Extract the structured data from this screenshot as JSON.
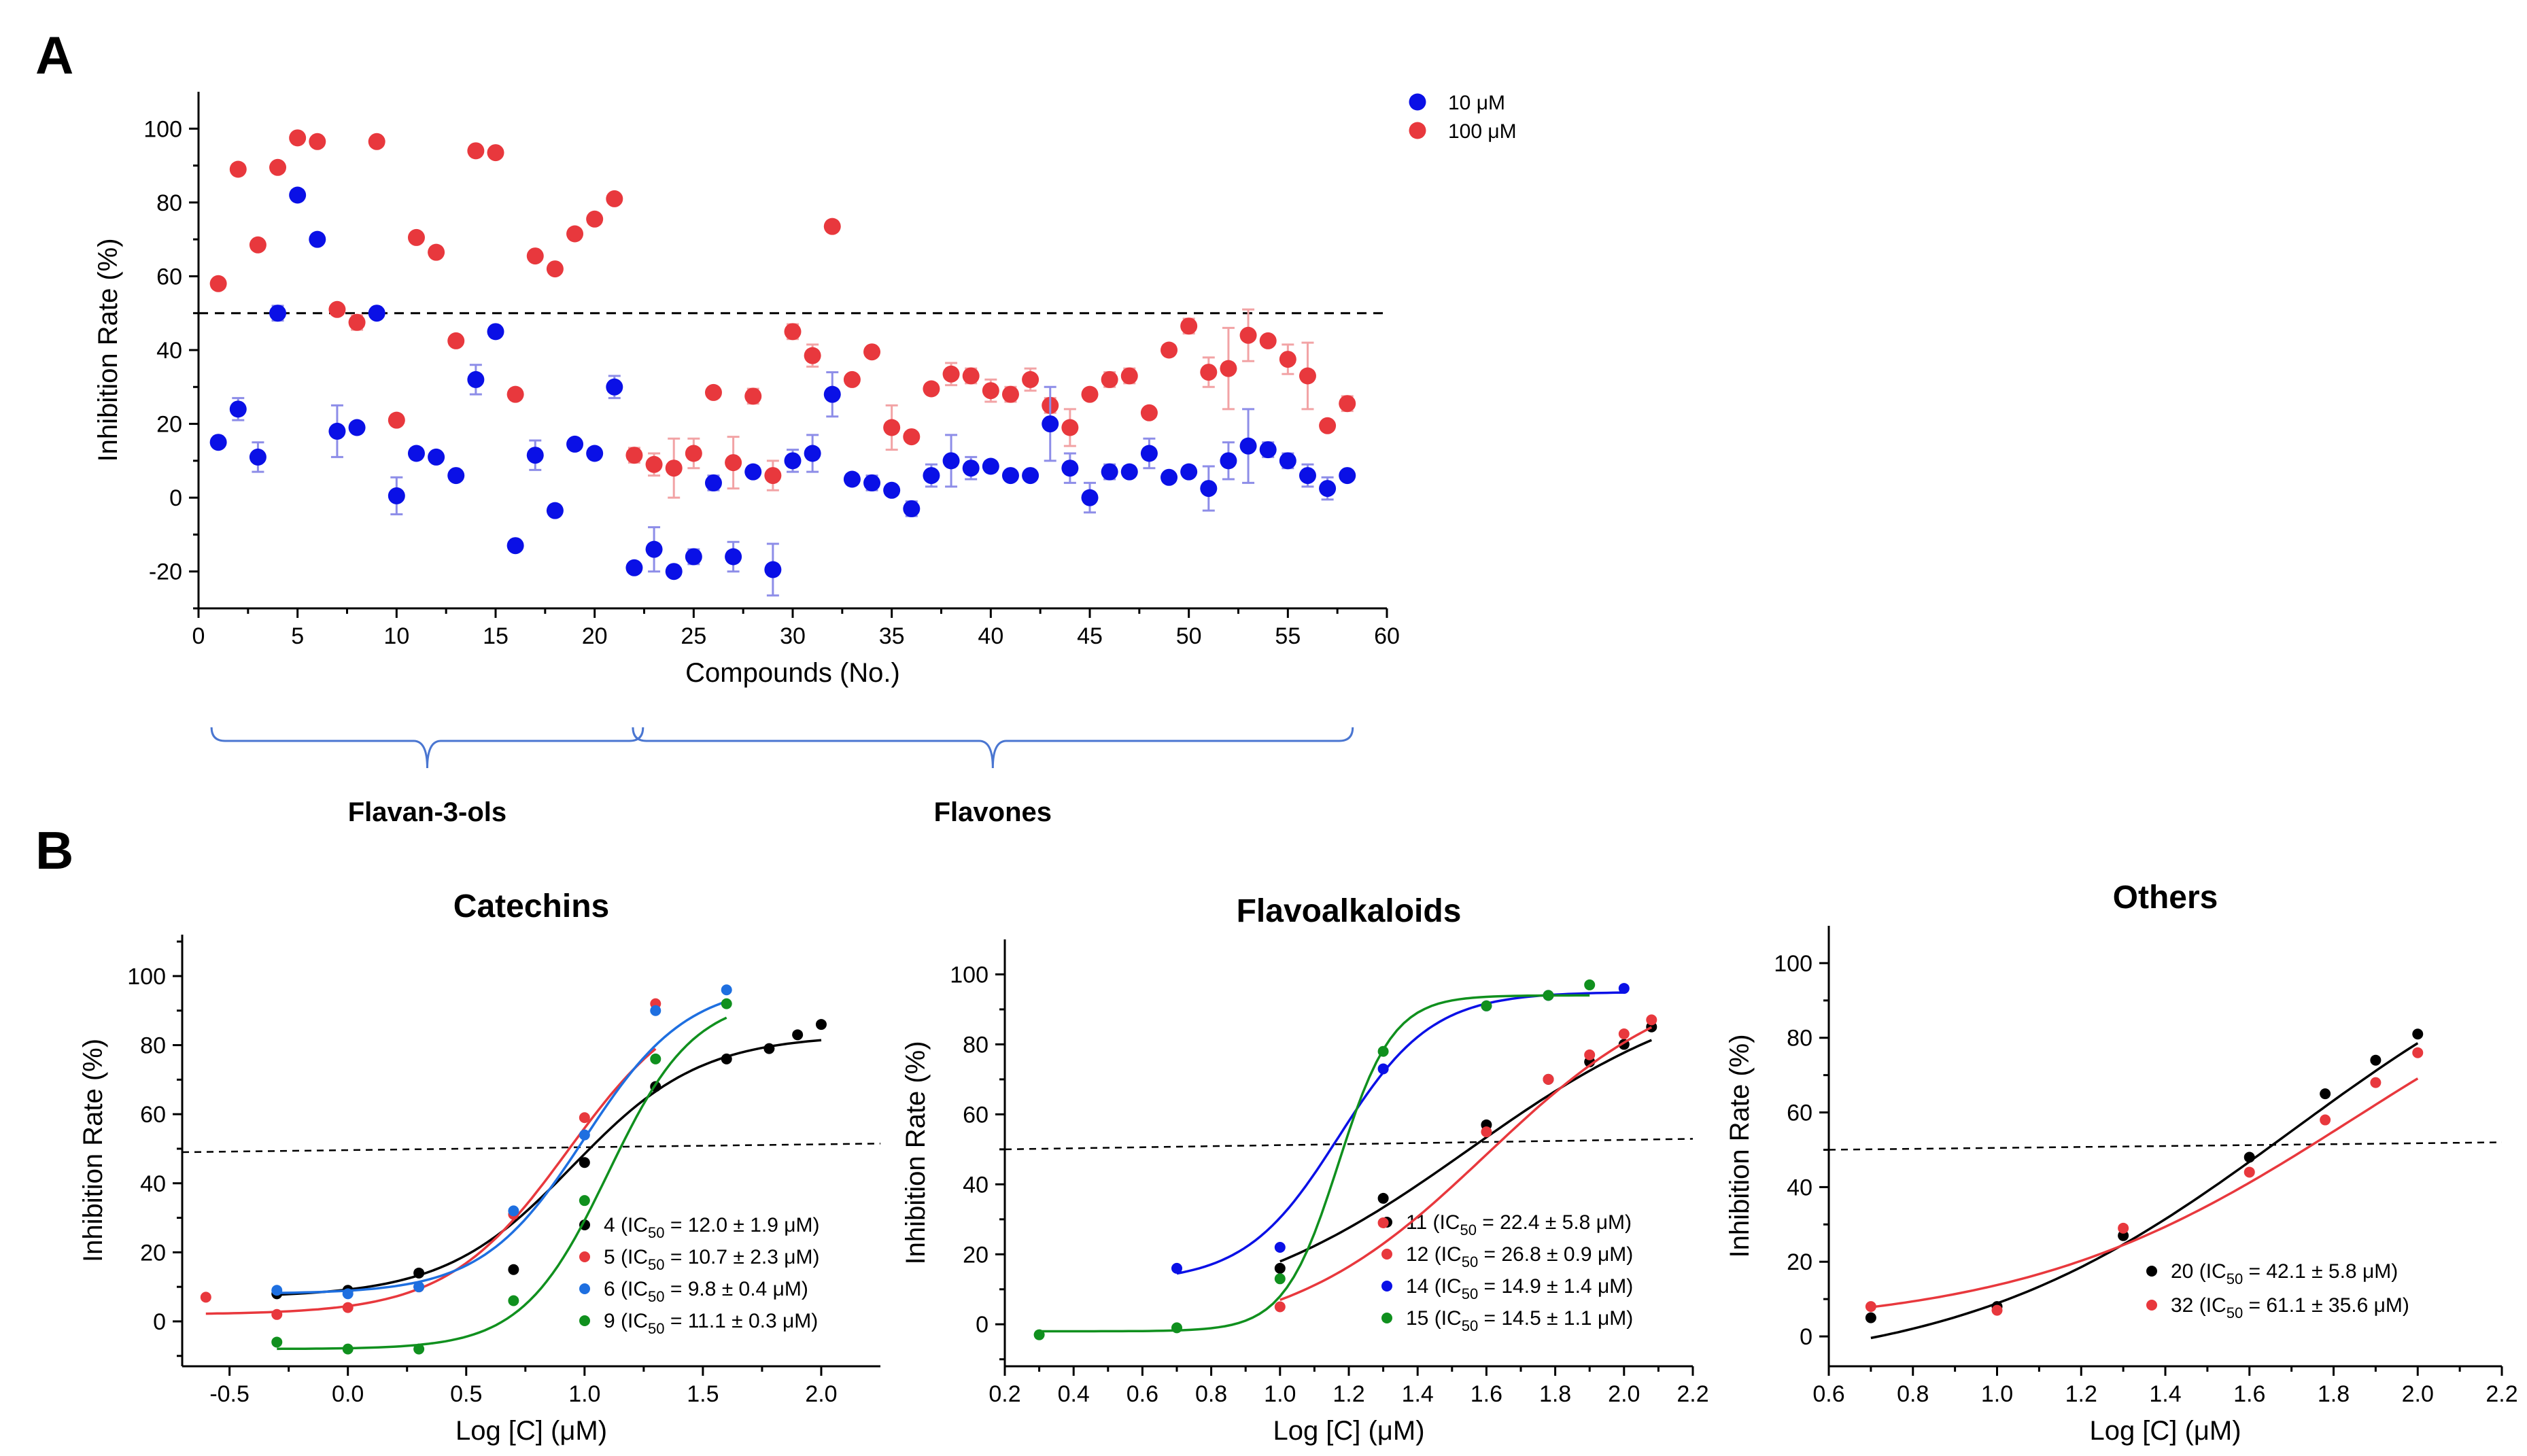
{
  "figure": {
    "panel_a_label": "A",
    "panel_b_label": "B",
    "groups": [
      {
        "label": "Flavan-3-ols",
        "from": 1,
        "to": 21
      },
      {
        "label": "Flavones",
        "from": 22,
        "to": 58
      }
    ]
  },
  "colors": {
    "blue": "#0a10e6",
    "red": "#e8383d",
    "black": "#000000",
    "lightblue": "#1e6fe0",
    "green": "#10901e",
    "errBlue": "#8d8de8",
    "errRed": "#f2a3a5"
  },
  "chart_data": [
    {
      "type": "scatter",
      "panel": "A",
      "title": "",
      "xlabel": "Compounds (No.)",
      "ylabel": "Inhibition Rate (%)",
      "xlim": [
        0,
        60
      ],
      "ylim": [
        -30,
        110
      ],
      "xticks": [
        0,
        5,
        10,
        15,
        20,
        25,
        30,
        35,
        40,
        45,
        50,
        55,
        60
      ],
      "yticks": [
        -20,
        0,
        20,
        40,
        60,
        80,
        100
      ],
      "reference_line_y": 50,
      "legend_position": "top-right",
      "series": [
        {
          "name": "10 μM",
          "color_key": "blue",
          "x": [
            1,
            2,
            3,
            4,
            5,
            6,
            7,
            8,
            9,
            10,
            11,
            12,
            13,
            14,
            15,
            16,
            17,
            18,
            19,
            20,
            21,
            22,
            23,
            24,
            25,
            26,
            27,
            28,
            29,
            30,
            31,
            32,
            33,
            34,
            35,
            36,
            37,
            38,
            39,
            40,
            41,
            42,
            43,
            44,
            45,
            46,
            47,
            48,
            49,
            50,
            51,
            52,
            53,
            54,
            55,
            56,
            57,
            58
          ],
          "y": [
            15,
            24,
            11,
            50,
            82,
            70,
            18,
            19,
            50,
            0.5,
            12,
            11,
            6,
            32,
            45,
            -13,
            11.5,
            -3.5,
            14.5,
            12,
            30,
            -19,
            -14,
            -20,
            -16,
            4,
            -16,
            7,
            -19.5,
            10,
            12,
            28,
            5,
            4,
            2,
            -3,
            6,
            10,
            8,
            8.5,
            6,
            6,
            20,
            8,
            0,
            7,
            7,
            12,
            5.5,
            7,
            2.5,
            10,
            14,
            13,
            10,
            6,
            2.5,
            6
          ],
          "err": [
            0,
            3,
            4,
            2,
            0,
            0,
            7,
            0,
            0,
            5,
            0,
            0,
            0,
            4,
            0,
            0,
            4,
            0,
            0,
            0,
            3,
            0,
            6,
            0,
            2,
            2,
            4,
            0,
            7,
            3,
            5,
            6,
            0,
            2,
            0,
            2,
            3,
            7,
            3,
            0,
            0,
            0,
            10,
            4,
            4,
            2,
            0,
            4,
            0,
            0,
            6,
            5,
            10,
            2,
            2,
            3,
            3,
            0
          ]
        },
        {
          "name": "100 μM",
          "color_key": "red",
          "x": [
            1,
            2,
            3,
            4,
            5,
            6,
            7,
            8,
            9,
            10,
            11,
            12,
            13,
            14,
            15,
            16,
            17,
            18,
            19,
            20,
            21,
            22,
            23,
            24,
            25,
            26,
            27,
            28,
            29,
            30,
            31,
            32,
            33,
            34,
            35,
            36,
            37,
            38,
            39,
            40,
            41,
            42,
            43,
            44,
            45,
            46,
            47,
            48,
            49,
            50,
            51,
            52,
            53,
            54,
            55,
            56,
            57,
            58
          ],
          "y": [
            58,
            89,
            68.5,
            89.5,
            97.5,
            96.5,
            51,
            47.5,
            96.5,
            21,
            70.5,
            66.5,
            42.5,
            94,
            93.5,
            28,
            65.5,
            62,
            71.5,
            75.5,
            81,
            11.5,
            9,
            8,
            12,
            28.5,
            9.5,
            27.5,
            6,
            45,
            38.5,
            73.5,
            32,
            39.5,
            19,
            16.5,
            29.5,
            33.5,
            33,
            29,
            28,
            32,
            25,
            19,
            28,
            32,
            33,
            23,
            40,
            46.5,
            34,
            35,
            44,
            42.5,
            37.5,
            33,
            19.5,
            25.5
          ],
          "err": [
            0,
            0,
            0,
            0,
            0,
            0,
            0,
            2,
            0,
            0,
            0,
            0,
            0,
            0,
            0,
            0,
            0,
            0,
            0,
            0,
            0,
            2,
            3,
            8,
            4,
            0,
            7,
            2,
            4,
            2,
            3,
            0,
            0,
            0,
            6,
            0,
            0,
            3,
            2,
            3,
            2,
            3,
            2,
            5,
            0,
            2,
            2,
            0,
            0,
            2,
            4,
            11,
            7,
            0,
            4,
            9,
            0,
            2
          ]
        }
      ]
    },
    {
      "type": "scatter",
      "panel": "B1",
      "title": "Catechins",
      "xlabel": "Log [C] (μM)",
      "ylabel": "Inhibition Rate (%)",
      "xlim": [
        -0.7,
        2.25
      ],
      "ylim": [
        -13,
        112
      ],
      "xticks": [
        -0.5,
        0.0,
        0.5,
        1.0,
        1.5,
        2.0
      ],
      "xtick_labels": [
        "-0.5",
        "0.0",
        "0.5",
        "1.0",
        "1.5",
        "2.0"
      ],
      "yticks": [
        0,
        20,
        40,
        60,
        80,
        100
      ],
      "reference_line": [
        [
          -0.7,
          49
        ],
        [
          2.25,
          51.5
        ]
      ],
      "legend_position": "bottom-right",
      "series": [
        {
          "name": "4 (IC50 = 12.0 ± 1.9 μM)",
          "label_main": "4 (IC",
          "label_sub": "50",
          "label_rest": " = 12.0 ± 1.9 μM)",
          "color_key": "black",
          "x": [
            -0.3,
            0.0,
            0.3,
            0.7,
            1.0,
            1.3,
            1.6,
            1.78,
            1.9,
            2.0
          ],
          "y": [
            8,
            9,
            14,
            15,
            46,
            68,
            76,
            79,
            83,
            86
          ],
          "fit": {
            "bottom": 7,
            "top": 83,
            "logec": 0.95,
            "hill": 1.6
          }
        },
        {
          "name": "5 (IC50 = 10.7 ± 2.3 μM)",
          "label_main": "5 (IC",
          "label_sub": "50",
          "label_rest": " = 10.7 ± 2.3 μM)",
          "color_key": "red",
          "x": [
            -0.6,
            -0.3,
            0.0,
            0.3,
            0.7,
            1.0,
            1.3
          ],
          "y": [
            7,
            2,
            4,
            10,
            31,
            59,
            92
          ],
          "fit": {
            "bottom": 2,
            "top": 97,
            "logec": 0.93,
            "hill": 1.7
          }
        },
        {
          "name": "6 (IC50 = 9.8 ± 0.4 μM)",
          "label_main": "6 (IC",
          "label_sub": "50",
          "label_rest": " = 9.8 ± 0.4 μM)",
          "color_key": "lightblue",
          "x": [
            -0.3,
            0.0,
            0.3,
            0.7,
            1.0,
            1.3,
            1.6
          ],
          "y": [
            9,
            8,
            10,
            32,
            54,
            90,
            96
          ],
          "fit": {
            "bottom": 8,
            "top": 98,
            "logec": 1.0,
            "hill": 2.0
          }
        },
        {
          "name": "9 (IC50 = 11.1 ± 0.3 μM)",
          "label_main": "9 (IC",
          "label_sub": "50",
          "label_rest": " = 11.1 ± 0.3 μM)",
          "color_key": "green",
          "x": [
            -0.3,
            0.0,
            0.3,
            0.7,
            1.0,
            1.3,
            1.6
          ],
          "y": [
            -6,
            -8,
            -8,
            6,
            35,
            76,
            92
          ],
          "fit": {
            "bottom": -8,
            "top": 94,
            "logec": 1.1,
            "hill": 2.4
          }
        }
      ]
    },
    {
      "type": "scatter",
      "panel": "B2",
      "title": "Flavoalkaloids",
      "xlabel": "Log [C] (μM)",
      "ylabel": "Inhibition Rate (%)",
      "xlim": [
        0.2,
        2.2
      ],
      "ylim": [
        -12,
        110
      ],
      "xticks": [
        0.2,
        0.4,
        0.6,
        0.8,
        1.0,
        1.2,
        1.4,
        1.6,
        1.8,
        2.0,
        2.2
      ],
      "xtick_labels": [
        "0.2",
        "0.4",
        "0.6",
        "0.8",
        "1.0",
        "1.2",
        "1.4",
        "1.6",
        "1.8",
        "2.0",
        "2.2"
      ],
      "yticks": [
        0,
        20,
        40,
        60,
        80,
        100
      ],
      "reference_line": [
        [
          0.2,
          50
        ],
        [
          2.2,
          53
        ]
      ],
      "legend_position": "bottom-right",
      "series": [
        {
          "name": "11 (IC50 = 22.4 ± 5.8 μM)",
          "label_main": "11 (IC",
          "label_sub": "50",
          "label_rest": " = 22.4 ± 5.8 μM)",
          "color_key": "black",
          "x": [
            1.0,
            1.3,
            1.6,
            1.78,
            1.9,
            2.0,
            2.08
          ],
          "y": [
            16,
            36,
            57,
            70,
            75,
            80,
            85
          ],
          "fit": {
            "bottom": 0,
            "top": 100,
            "logec": 1.55,
            "hill": 1.2
          }
        },
        {
          "name": "12 (IC50 = 26.8 ± 0.9 μM)",
          "label_main": "12 (IC",
          "label_sub": "50",
          "label_rest": " = 26.8 ± 0.9 μM)",
          "color_key": "red",
          "x": [
            1.0,
            1.3,
            1.6,
            1.78,
            1.9,
            2.0,
            2.08
          ],
          "y": [
            5,
            29,
            55,
            70,
            77,
            83,
            87
          ],
          "fit": {
            "bottom": -5,
            "top": 102,
            "logec": 1.6,
            "hill": 1.5
          }
        },
        {
          "name": "14 (IC50 = 14.9 ± 1.4 μM)",
          "label_main": "14 (IC",
          "label_sub": "50",
          "label_rest": " = 14.9 ± 1.4 μM)",
          "color_key": "blue",
          "x": [
            0.7,
            1.0,
            1.3,
            1.6,
            1.78,
            2.0
          ],
          "y": [
            16,
            22,
            73,
            91,
            94,
            96
          ],
          "fit": {
            "bottom": 12,
            "top": 95,
            "logec": 1.17,
            "hill": 3.2
          }
        },
        {
          "name": "15 (IC50 = 14.5 ± 1.1 μM)",
          "label_main": "15 (IC",
          "label_sub": "50",
          "label_rest": " = 14.5 ± 1.1 μM)",
          "color_key": "green",
          "x": [
            0.3,
            0.7,
            1.0,
            1.3,
            1.6,
            1.78,
            1.9
          ],
          "y": [
            -3,
            -1,
            13,
            78,
            91,
            94,
            97
          ],
          "fit": {
            "bottom": -2,
            "top": 94,
            "logec": 1.17,
            "hill": 5.5
          }
        }
      ]
    },
    {
      "type": "scatter",
      "panel": "B3",
      "title": "Others",
      "xlabel": "Log [C] (μM)",
      "ylabel": "Inhibition Rate (%)",
      "xlim": [
        0.6,
        2.2
      ],
      "ylim": [
        -8,
        110
      ],
      "xticks": [
        0.6,
        0.8,
        1.0,
        1.2,
        1.4,
        1.6,
        1.8,
        2.0,
        2.2
      ],
      "xtick_labels": [
        "0.6",
        "0.8",
        "1.0",
        "1.2",
        "1.4",
        "1.6",
        "1.8",
        "2.0",
        "2.2"
      ],
      "yticks": [
        0,
        20,
        40,
        60,
        80,
        100
      ],
      "reference_line": [
        [
          0.6,
          50
        ],
        [
          2.2,
          52
        ]
      ],
      "legend_position": "bottom-right",
      "series": [
        {
          "name": "20 (IC50 = 42.1 ± 5.8 μM)",
          "label_main": "20 (IC",
          "label_sub": "50",
          "label_rest": " = 42.1 ± 5.8 μM)",
          "color_key": "black",
          "x": [
            0.7,
            1.0,
            1.3,
            1.6,
            1.78,
            1.9,
            2.0
          ],
          "y": [
            5,
            8,
            27,
            48,
            65,
            74,
            81
          ],
          "fit": {
            "bottom": -10,
            "top": 120,
            "logec": 1.7,
            "hill": 1.1
          }
        },
        {
          "name": "32 (IC50 = 61.1 ± 35.6 μM)",
          "label_main": "32 (IC",
          "label_sub": "50",
          "label_rest": " = 61.1 ± 35.6 μM)",
          "color_key": "red",
          "x": [
            0.7,
            1.0,
            1.3,
            1.6,
            1.78,
            1.9,
            2.0
          ],
          "y": [
            8,
            7,
            29,
            44,
            58,
            68,
            76
          ],
          "fit": {
            "bottom": 2,
            "top": 115,
            "logec": 1.85,
            "hill": 1.1
          }
        }
      ]
    }
  ]
}
